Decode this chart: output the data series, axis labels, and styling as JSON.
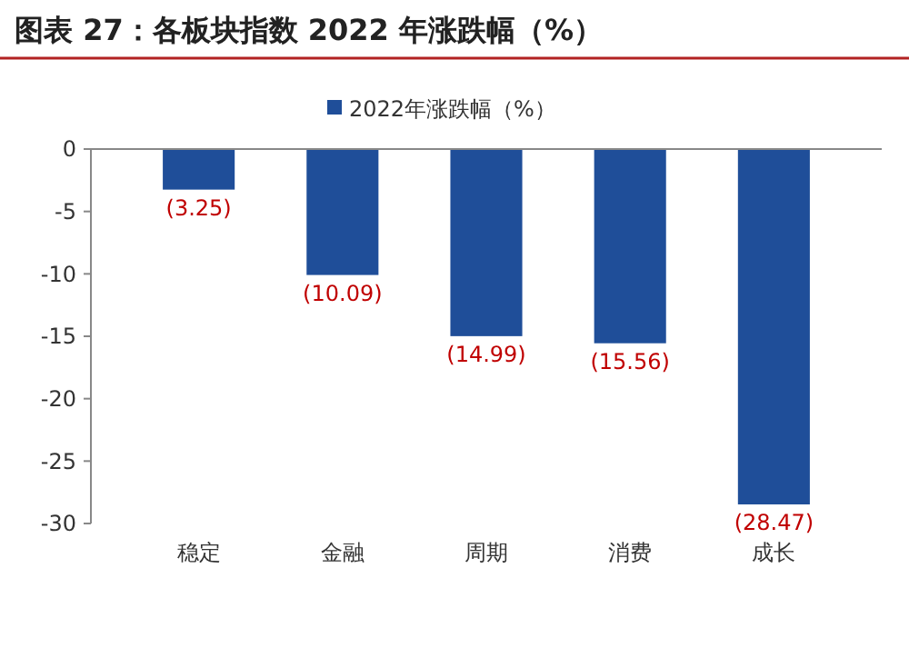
{
  "chart_data": {
    "type": "bar",
    "title": "图表 27：各板块指数 2022 年涨跌幅（%）",
    "categories": [
      "稳定",
      "金融",
      "周期",
      "消费",
      "成长"
    ],
    "series": [
      {
        "name": "2022年涨跌幅（%）",
        "color": "#1f4e99",
        "values": [
          -3.25,
          -10.09,
          -14.99,
          -15.56,
          -28.47
        ],
        "value_labels": [
          "(3.25)",
          "(10.09)",
          "(14.99)",
          "(15.56)",
          "(28.47)"
        ]
      }
    ],
    "ylim": [
      -30,
      0
    ],
    "yticks": [
      -30,
      -25,
      -20,
      -15,
      -10,
      -5,
      0
    ],
    "legend": "top",
    "grid": false
  }
}
